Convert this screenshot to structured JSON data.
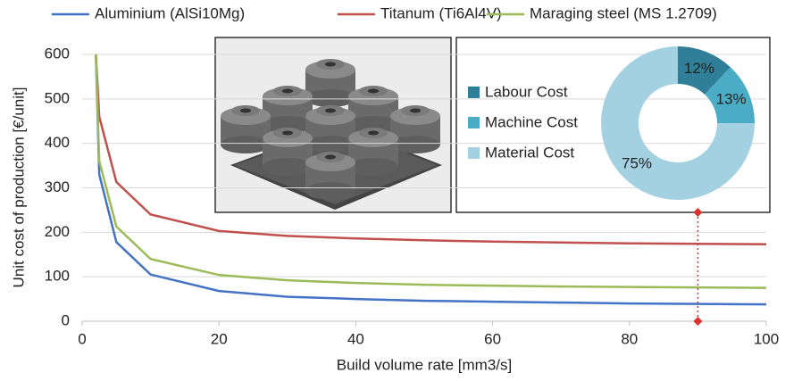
{
  "chart_data": [
    {
      "type": "line",
      "xlabel": "Build volume rate [mm3/s]",
      "ylabel": "Unit cost of production [€/unit]",
      "x": [
        2,
        2.5,
        5,
        10,
        20,
        30,
        40,
        50,
        60,
        70,
        80,
        90,
        100
      ],
      "series": [
        {
          "name": "Aluminium (AlSi10Mg)",
          "color": "#4472c4",
          "values": [
            600,
            330,
            178,
            105,
            68,
            55,
            50,
            46,
            44,
            42,
            40,
            39,
            38
          ]
        },
        {
          "name": "Titanum (Ti6Al4V)",
          "color": "#c0504d",
          "values": [
            600,
            460,
            313,
            240,
            203,
            192,
            186,
            182,
            179,
            177,
            175,
            174,
            173
          ]
        },
        {
          "name": "Maraging steel  (MS 1.2709)",
          "color": "#9bbb59",
          "values": [
            600,
            360,
            213,
            140,
            104,
            92,
            86,
            82,
            80,
            78,
            77,
            76,
            75
          ]
        }
      ],
      "xlim": [
        0,
        100
      ],
      "xticks": [
        0,
        20,
        40,
        60,
        80,
        100
      ],
      "ylim": [
        0,
        600
      ],
      "yticks": [
        0,
        100,
        200,
        300,
        400,
        500,
        600
      ],
      "grid": true,
      "marker_x": 90,
      "marker_color": "#e0302a"
    },
    {
      "type": "pie",
      "categories": [
        "Labour Cost",
        "Machine Cost",
        "Material Cost"
      ],
      "values": [
        12,
        13,
        75
      ],
      "value_labels": [
        "12%",
        "13%",
        "75%"
      ],
      "colors": [
        "#2e7f97",
        "#4bacc6",
        "#a3d1e1"
      ]
    }
  ]
}
